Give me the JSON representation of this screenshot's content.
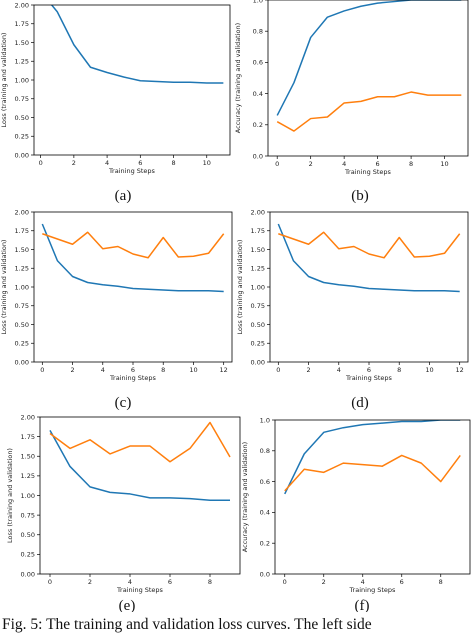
{
  "caption": "Fig. 5: The training and validation loss curves. The left side",
  "colors": {
    "training": "#1f77b4",
    "validation": "#ff7f0e"
  },
  "chart_data": [
    {
      "label": "(a)",
      "type": "line",
      "xlabel": "Training Steps",
      "ylabel": "Loss (training and validation)",
      "xlim": [
        -0.4,
        11.4
      ],
      "ylim": [
        0.0,
        2.0
      ],
      "xticks": [
        0,
        2,
        4,
        6,
        8,
        10
      ],
      "xtick_labels": [
        "0",
        "2",
        "4",
        "6",
        "8",
        "10"
      ],
      "yticks": [
        0.0,
        0.25,
        0.5,
        0.75,
        1.0,
        1.25,
        1.5,
        1.75,
        2.0
      ],
      "ytick_labels": [
        "0.00",
        "0.25",
        "0.50",
        "0.75",
        "1.00",
        "1.25",
        "1.50",
        "1.75",
        "2.00"
      ],
      "series": [
        {
          "color": "#1f77b4",
          "x": [
            0,
            1,
            2,
            3,
            4,
            5,
            6,
            7,
            8,
            9,
            10,
            11
          ],
          "y": [
            2.18,
            1.91,
            1.47,
            1.17,
            1.1,
            1.04,
            0.99,
            0.98,
            0.97,
            0.97,
            0.96,
            0.96
          ]
        }
      ]
    },
    {
      "label": "(b)",
      "type": "line",
      "xlabel": "Training Steps",
      "ylabel": "Accuracy (training and validation)",
      "xlim": [
        -0.55,
        11.4
      ],
      "ylim": [
        0.0,
        1.0
      ],
      "xticks": [
        0,
        2,
        4,
        6,
        8,
        10
      ],
      "xtick_labels": [
        "0",
        "2",
        "4",
        "6",
        "8",
        "10"
      ],
      "yticks": [
        0.0,
        0.2,
        0.4,
        0.6,
        0.8,
        1.0
      ],
      "ytick_labels": [
        "0.0",
        "0.2",
        "0.4",
        "0.6",
        "0.8",
        "1.0"
      ],
      "series": [
        {
          "color": "#1f77b4",
          "x": [
            0,
            1,
            2,
            3,
            4,
            5,
            6,
            7,
            8,
            9,
            10,
            11
          ],
          "y": [
            0.26,
            0.47,
            0.76,
            0.89,
            0.93,
            0.96,
            0.98,
            0.99,
            1.0,
            1.0,
            1.0,
            1.0
          ]
        },
        {
          "color": "#ff7f0e",
          "x": [
            0,
            1,
            2,
            3,
            4,
            5,
            6,
            7,
            8,
            9,
            10,
            11
          ],
          "y": [
            0.22,
            0.16,
            0.24,
            0.25,
            0.34,
            0.35,
            0.38,
            0.38,
            0.41,
            0.39,
            0.39,
            0.39
          ]
        }
      ]
    },
    {
      "label": "(c)",
      "type": "line",
      "xlabel": "Training Steps",
      "ylabel": "Loss (training and validation)",
      "xlim": [
        -0.55,
        12.55
      ],
      "ylim": [
        0.0,
        2.0
      ],
      "xticks": [
        0,
        2,
        4,
        6,
        8,
        10,
        12
      ],
      "xtick_labels": [
        "0",
        "2",
        "4",
        "6",
        "8",
        "10",
        "12"
      ],
      "yticks": [
        0.0,
        0.25,
        0.5,
        0.75,
        1.0,
        1.25,
        1.5,
        1.75,
        2.0
      ],
      "ytick_labels": [
        "0.00",
        "0.25",
        "0.50",
        "0.75",
        "1.00",
        "1.25",
        "1.50",
        "1.75",
        "2.00"
      ],
      "series": [
        {
          "color": "#1f77b4",
          "x": [
            0,
            1,
            2,
            3,
            4,
            5,
            6,
            7,
            8,
            9,
            10,
            11,
            12
          ],
          "y": [
            1.84,
            1.35,
            1.14,
            1.06,
            1.03,
            1.01,
            0.98,
            0.97,
            0.96,
            0.95,
            0.95,
            0.95,
            0.94
          ]
        },
        {
          "color": "#ff7f0e",
          "x": [
            0,
            1,
            2,
            3,
            4,
            5,
            6,
            7,
            8,
            9,
            10,
            11,
            12
          ],
          "y": [
            1.71,
            1.64,
            1.57,
            1.73,
            1.51,
            1.54,
            1.44,
            1.39,
            1.66,
            1.4,
            1.41,
            1.45,
            1.71
          ]
        }
      ]
    },
    {
      "label": "(d)",
      "type": "line",
      "xlabel": "Training Steps",
      "ylabel": "Loss (training and validation)",
      "xlim": [
        -0.55,
        12.55
      ],
      "ylim": [
        0.0,
        2.0
      ],
      "xticks": [
        0,
        2,
        4,
        6,
        8,
        10,
        12
      ],
      "xtick_labels": [
        "0",
        "2",
        "4",
        "6",
        "8",
        "10",
        "12"
      ],
      "yticks": [
        0.0,
        0.25,
        0.5,
        0.75,
        1.0,
        1.25,
        1.5,
        1.75,
        2.0
      ],
      "ytick_labels": [
        "0.00",
        "0.25",
        "0.50",
        "0.75",
        "1.00",
        "1.25",
        "1.50",
        "1.75",
        "2.00"
      ],
      "series": [
        {
          "color": "#1f77b4",
          "x": [
            0,
            1,
            2,
            3,
            4,
            5,
            6,
            7,
            8,
            9,
            10,
            11,
            12
          ],
          "y": [
            1.84,
            1.35,
            1.14,
            1.06,
            1.03,
            1.01,
            0.98,
            0.97,
            0.96,
            0.95,
            0.95,
            0.95,
            0.94
          ]
        },
        {
          "color": "#ff7f0e",
          "x": [
            0,
            1,
            2,
            3,
            4,
            5,
            6,
            7,
            8,
            9,
            10,
            11,
            12
          ],
          "y": [
            1.71,
            1.64,
            1.57,
            1.73,
            1.51,
            1.54,
            1.44,
            1.39,
            1.66,
            1.4,
            1.41,
            1.45,
            1.71
          ]
        }
      ]
    },
    {
      "label": "(e)",
      "type": "line",
      "xlabel": "Training Steps",
      "ylabel": "Loss (training and validation)",
      "xlim": [
        -0.5,
        9.5
      ],
      "ylim": [
        0.0,
        2.0
      ],
      "xticks": [
        0,
        2,
        4,
        6,
        8
      ],
      "xtick_labels": [
        "0",
        "2",
        "4",
        "6",
        "8"
      ],
      "yticks": [
        0.0,
        0.25,
        0.5,
        0.75,
        1.0,
        1.25,
        1.5,
        1.75,
        2.0
      ],
      "ytick_labels": [
        "0.00",
        "0.25",
        "0.50",
        "0.75",
        "1.00",
        "1.25",
        "1.50",
        "1.75",
        "2.00"
      ],
      "series": [
        {
          "color": "#1f77b4",
          "x": [
            0,
            1,
            2,
            3,
            4,
            5,
            6,
            7,
            8,
            9
          ],
          "y": [
            1.83,
            1.37,
            1.11,
            1.04,
            1.02,
            0.97,
            0.97,
            0.96,
            0.94,
            0.94
          ]
        },
        {
          "color": "#ff7f0e",
          "x": [
            0,
            1,
            2,
            3,
            4,
            5,
            6,
            7,
            8,
            9
          ],
          "y": [
            1.79,
            1.6,
            1.71,
            1.53,
            1.63,
            1.63,
            1.43,
            1.6,
            1.93,
            1.49
          ]
        }
      ]
    },
    {
      "label": "(f)",
      "type": "line",
      "xlabel": "Training Steps",
      "ylabel": "Accuracy (training and validation)",
      "xlim": [
        -0.5,
        9.5
      ],
      "ylim": [
        0.0,
        1.0
      ],
      "xticks": [
        0,
        2,
        4,
        6,
        8
      ],
      "xtick_labels": [
        "0",
        "2",
        "4",
        "6",
        "8"
      ],
      "yticks": [
        0.0,
        0.2,
        0.4,
        0.6,
        0.8,
        1.0
      ],
      "ytick_labels": [
        "0.0",
        "0.2",
        "0.4",
        "0.6",
        "0.8",
        "1.0"
      ],
      "series": [
        {
          "color": "#1f77b4",
          "x": [
            0,
            1,
            2,
            3,
            4,
            5,
            6,
            7,
            8,
            9
          ],
          "y": [
            0.52,
            0.78,
            0.92,
            0.95,
            0.97,
            0.98,
            0.99,
            0.99,
            1.0,
            1.0
          ]
        },
        {
          "color": "#ff7f0e",
          "x": [
            0,
            1,
            2,
            3,
            4,
            5,
            6,
            7,
            8,
            9
          ],
          "y": [
            0.54,
            0.68,
            0.66,
            0.72,
            0.71,
            0.7,
            0.77,
            0.72,
            0.6,
            0.77
          ]
        }
      ]
    }
  ]
}
